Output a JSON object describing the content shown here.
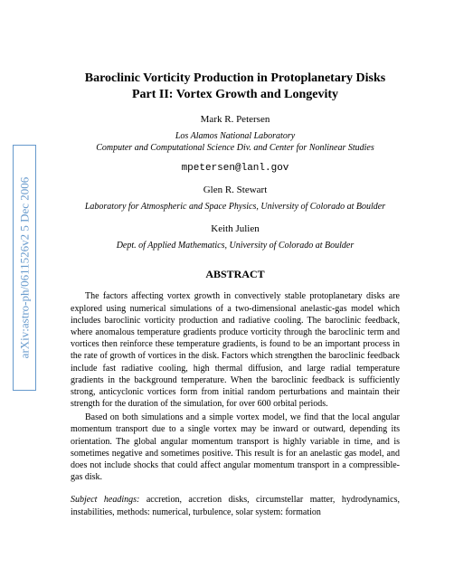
{
  "arxiv_id": "arXiv:astro-ph/0611526v2  5 Dec 2006",
  "title_line1": "Baroclinic Vorticity Production in Protoplanetary Disks",
  "title_line2": "Part II: Vortex Growth and Longevity",
  "authors": [
    {
      "name": "Mark R. Petersen",
      "affiliation_lines": [
        "Los Alamos National Laboratory",
        "Computer and Computational Science Div. and Center for Nonlinear Studies"
      ],
      "email": "mpetersen@lanl.gov"
    },
    {
      "name": "Glen R. Stewart",
      "affiliation_lines": [
        "Laboratory for Atmospheric and Space Physics, University of Colorado at Boulder"
      ],
      "email": null
    },
    {
      "name": "Keith Julien",
      "affiliation_lines": [
        "Dept. of Applied Mathematics, University of Colorado at Boulder"
      ],
      "email": null
    }
  ],
  "abstract_heading": "ABSTRACT",
  "abstract_paragraphs": [
    "The factors affecting vortex growth in convectively stable protoplanetary disks are explored using numerical simulations of a two-dimensional anelastic-gas model which includes baroclinic vorticity production and radiative cooling. The baroclinic feedback, where anomalous temperature gradients produce vorticity through the baroclinic term and vortices then reinforce these temperature gradients, is found to be an important process in the rate of growth of vortices in the disk. Factors which strengthen the baroclinic feedback include fast radiative cooling, high thermal diffusion, and large radial temperature gradients in the background temperature. When the baroclinic feedback is sufficiently strong, anticyclonic vortices form from initial random perturbations and maintain their strength for the duration of the simulation, for over 600 orbital periods.",
    "Based on both simulations and a simple vortex model, we find that the local angular momentum transport due to a single vortex may be inward or outward, depending its orientation. The global angular momentum transport is highly variable in time, and is sometimes negative and sometimes positive. This result is for an anelastic gas model, and does not include shocks that could affect angular momentum transport in a compressible-gas disk."
  ],
  "subject_label": "Subject headings:",
  "subject_text": " accretion, accretion disks, circumstellar matter, hydrodynamics, instabilities, methods: numerical, turbulence, solar system: formation"
}
